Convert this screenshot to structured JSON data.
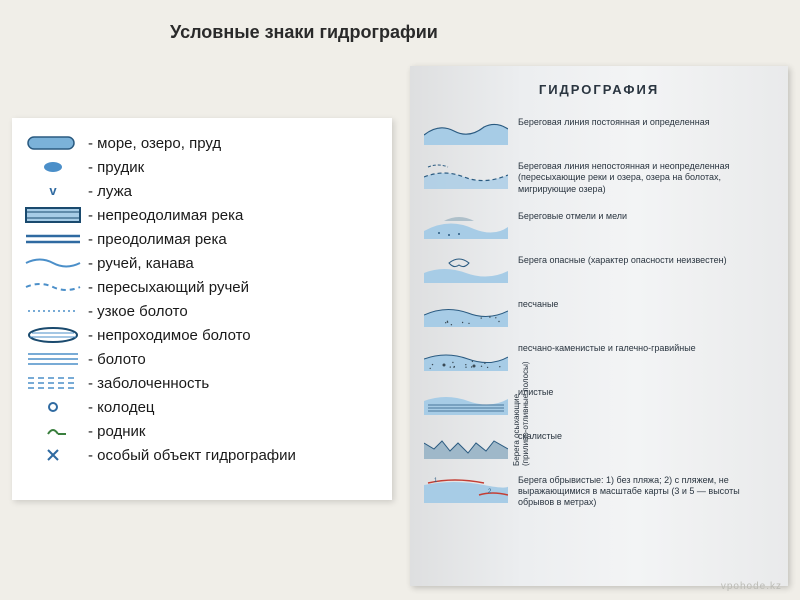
{
  "title": "Условные знаки гидрографии",
  "colors": {
    "blue": "#4b8fc9",
    "blue_dark": "#2f6aa1",
    "blue_light": "#a7cce6",
    "blue_fill": "#7bb2d9",
    "red": "#c43f35",
    "green": "#3a7f3e",
    "text": "#1a1a1a"
  },
  "left_legend": [
    {
      "icon": "lake",
      "label": "- море, озеро, пруд"
    },
    {
      "icon": "pond",
      "label": "- прудик"
    },
    {
      "icon": "puddle",
      "label": "- лужа"
    },
    {
      "icon": "river-hard",
      "label": "- непреодолимая река"
    },
    {
      "icon": "river-easy",
      "label": "- преодолимая река"
    },
    {
      "icon": "stream",
      "label": "- ручей, канава"
    },
    {
      "icon": "dry-stream",
      "label": "- пересыхающий ручей"
    },
    {
      "icon": "narrow-bog",
      "label": "- узкое болото"
    },
    {
      "icon": "impass-bog",
      "label": "- непроходимое болото"
    },
    {
      "icon": "bog",
      "label": "- болото"
    },
    {
      "icon": "marsh",
      "label": "- заболоченность"
    },
    {
      "icon": "well",
      "label": "- колодец"
    },
    {
      "icon": "spring",
      "label": "- родник"
    },
    {
      "icon": "special",
      "label": "- особый объект гидрографии"
    }
  ],
  "right": {
    "title": "ГИДРОГРАФИЯ",
    "side_label": "Берега осыхающие\n(приливо-отливные полосы)",
    "rows": [
      {
        "icon": "coast-const",
        "label": "Береговая линия постоянная и определенная"
      },
      {
        "icon": "coast-vary",
        "label": "Береговая линия непостоянная и неопределенная (пересыхающие реки и озера, озера на болотах, мигрирующие озера)"
      },
      {
        "icon": "shoals",
        "label": "Береговые отмели и мели"
      },
      {
        "icon": "danger",
        "label": "Берега опасные (характер опасности неизвестен)"
      },
      {
        "icon": "sandy",
        "label": "песчаные"
      },
      {
        "icon": "mixed",
        "label": "песчано-каменистые и галечно-гравийные"
      },
      {
        "icon": "muddy",
        "label": "илистые"
      },
      {
        "icon": "rocky",
        "label": "скалистые"
      },
      {
        "icon": "cliff",
        "label": "Берега обрывистые: 1) без пляжа; 2) с пляжем, не выражающимися в масштабе карты (3 и 5 — высоты обрывов в метрах)"
      }
    ]
  },
  "watermark": "vpohode.kz"
}
